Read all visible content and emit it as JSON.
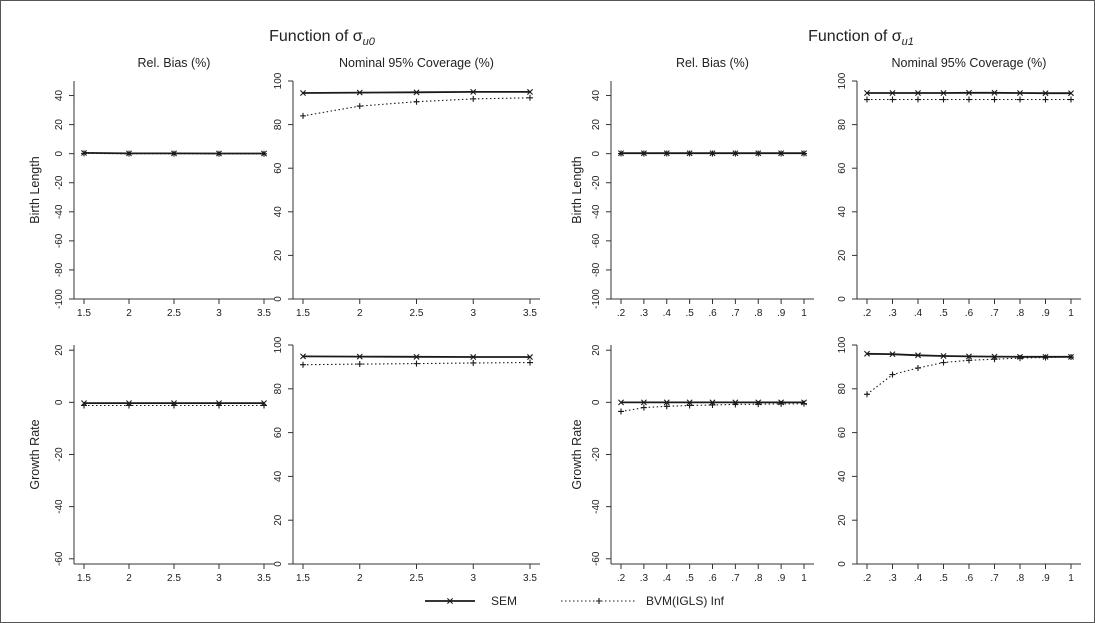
{
  "chart_data": {
    "type": "line",
    "groups": [
      {
        "prefix": "Function of ",
        "symbol": "σ",
        "sub": "u0"
      },
      {
        "prefix": "Function of ",
        "symbol": "σ",
        "sub": "u1"
      }
    ],
    "row_labels": [
      "Birth Length",
      "Growth Rate"
    ],
    "legend": [
      "SEM",
      "BVM(IGLS) Inf"
    ],
    "panels": [
      {
        "title": "Rel. Bias (%)",
        "row": 0,
        "col": 0,
        "x": [
          1.5,
          2,
          2.5,
          3,
          3.5
        ],
        "x_ticks": [
          "1.5",
          "2",
          "2.5",
          "3",
          "3.5"
        ],
        "ylim": [
          -100,
          50
        ],
        "y_ticks": [
          "-100",
          "-80",
          "-60",
          "-40",
          "-20",
          "0",
          "20",
          "40"
        ],
        "y_tick_values": [
          -100,
          -80,
          -60,
          -40,
          -20,
          0,
          20,
          40
        ],
        "series": [
          {
            "name": "SEM",
            "values": [
              0.5,
              0.2,
              0.2,
              0.1,
              0.1
            ]
          },
          {
            "name": "BVM(IGLS) Inf",
            "values": [
              0.2,
              0.0,
              0.0,
              -0.1,
              -0.1
            ]
          }
        ]
      },
      {
        "title": "Nominal 95% Coverage (%)",
        "row": 0,
        "col": 1,
        "x": [
          1.5,
          2,
          2.5,
          3,
          3.5
        ],
        "x_ticks": [
          "1.5",
          "2",
          "2.5",
          "3",
          "3.5"
        ],
        "ylim": [
          0,
          100
        ],
        "y_ticks": [
          "0",
          "20",
          "40",
          "60",
          "80",
          "100"
        ],
        "y_tick_values": [
          0,
          20,
          40,
          60,
          80,
          100
        ],
        "series": [
          {
            "name": "SEM",
            "values": [
              94.5,
              94.7,
              94.8,
              95.0,
              95.0
            ]
          },
          {
            "name": "BVM(IGLS) Inf",
            "values": [
              84,
              88.5,
              90.5,
              91.8,
              92.3
            ]
          }
        ]
      },
      {
        "title": "Rel. Bias (%)",
        "row": 0,
        "col": 2,
        "x": [
          0.2,
          0.3,
          0.4,
          0.5,
          0.6,
          0.7,
          0.8,
          0.9,
          1.0
        ],
        "x_ticks": [
          ".2",
          ".3",
          ".4",
          ".5",
          ".6",
          ".7",
          ".8",
          ".9",
          "1"
        ],
        "ylim": [
          -100,
          50
        ],
        "y_ticks": [
          "-100",
          "-80",
          "-60",
          "-40",
          "-20",
          "0",
          "20",
          "40"
        ],
        "y_tick_values": [
          -100,
          -80,
          -60,
          -40,
          -20,
          0,
          20,
          40
        ],
        "series": [
          {
            "name": "SEM",
            "values": [
              0.3,
              0.3,
              0.3,
              0.3,
              0.3,
              0.3,
              0.3,
              0.3,
              0.3
            ]
          },
          {
            "name": "BVM(IGLS) Inf",
            "values": [
              0.1,
              0.1,
              0.1,
              0.1,
              0.1,
              0.1,
              0.1,
              0.1,
              0.1
            ]
          }
        ]
      },
      {
        "title": "Nominal 95% Coverage (%)",
        "row": 0,
        "col": 3,
        "x": [
          0.2,
          0.3,
          0.4,
          0.5,
          0.6,
          0.7,
          0.8,
          0.9,
          1.0
        ],
        "x_ticks": [
          ".2",
          ".3",
          ".4",
          ".5",
          ".6",
          ".7",
          ".8",
          ".9",
          "1"
        ],
        "ylim": [
          0,
          100
        ],
        "y_ticks": [
          "0",
          "20",
          "40",
          "60",
          "80",
          "100"
        ],
        "y_tick_values": [
          0,
          20,
          40,
          60,
          80,
          100
        ],
        "series": [
          {
            "name": "SEM",
            "values": [
              94.5,
              94.5,
              94.5,
              94.5,
              94.6,
              94.6,
              94.5,
              94.4,
              94.4
            ]
          },
          {
            "name": "BVM(IGLS) Inf",
            "values": [
              91.5,
              91.5,
              91.5,
              91.5,
              91.5,
              91.5,
              91.5,
              91.5,
              91.5
            ]
          }
        ]
      },
      {
        "title": "",
        "row": 1,
        "col": 0,
        "x": [
          1.5,
          2,
          2.5,
          3,
          3.5
        ],
        "x_ticks": [
          "1.5",
          "2",
          "2.5",
          "3",
          "3.5"
        ],
        "ylim": [
          -62,
          22
        ],
        "y_ticks": [
          "-60",
          "-40",
          "-20",
          "0",
          "20"
        ],
        "y_tick_values": [
          -60,
          -40,
          -20,
          0,
          20
        ],
        "series": [
          {
            "name": "SEM",
            "values": [
              -0.3,
              -0.3,
              -0.3,
              -0.3,
              -0.3
            ]
          },
          {
            "name": "BVM(IGLS) Inf",
            "values": [
              -1.2,
              -1.2,
              -1.2,
              -1.2,
              -1.2
            ]
          }
        ]
      },
      {
        "title": "",
        "row": 1,
        "col": 1,
        "x": [
          1.5,
          2,
          2.5,
          3,
          3.5
        ],
        "x_ticks": [
          "1.5",
          "2",
          "2.5",
          "3",
          "3.5"
        ],
        "ylim": [
          0,
          100
        ],
        "y_ticks": [
          "0",
          "20",
          "40",
          "60",
          "80",
          "100"
        ],
        "y_tick_values": [
          0,
          20,
          40,
          60,
          80,
          100
        ],
        "series": [
          {
            "name": "SEM",
            "values": [
              94.8,
              94.7,
              94.6,
              94.5,
              94.5
            ]
          },
          {
            "name": "BVM(IGLS) Inf",
            "values": [
              91.0,
              91.3,
              91.5,
              91.8,
              92.0
            ]
          }
        ]
      },
      {
        "title": "",
        "row": 1,
        "col": 2,
        "x": [
          0.2,
          0.3,
          0.4,
          0.5,
          0.6,
          0.7,
          0.8,
          0.9,
          1.0
        ],
        "x_ticks": [
          ".2",
          ".3",
          ".4",
          ".5",
          ".6",
          ".7",
          ".8",
          ".9",
          "1"
        ],
        "ylim": [
          -62,
          22
        ],
        "y_ticks": [
          "-60",
          "-40",
          "-20",
          "0",
          "20"
        ],
        "y_tick_values": [
          -60,
          -40,
          -20,
          0,
          20
        ],
        "series": [
          {
            "name": "SEM",
            "values": [
              0.0,
              0.0,
              0.0,
              0.0,
              0.0,
              0.0,
              0.0,
              0.0,
              0.0
            ]
          },
          {
            "name": "BVM(IGLS) Inf",
            "values": [
              -3.5,
              -2.0,
              -1.5,
              -1.2,
              -1.0,
              -0.8,
              -0.7,
              -0.6,
              -0.5
            ]
          }
        ]
      },
      {
        "title": "",
        "row": 1,
        "col": 3,
        "x": [
          0.2,
          0.3,
          0.4,
          0.5,
          0.6,
          0.7,
          0.8,
          0.9,
          1.0
        ],
        "x_ticks": [
          ".2",
          ".3",
          ".4",
          ".5",
          ".6",
          ".7",
          ".8",
          ".9",
          "1"
        ],
        "ylim": [
          0,
          100
        ],
        "y_ticks": [
          "0",
          "20",
          "40",
          "60",
          "80",
          "100"
        ],
        "y_tick_values": [
          0,
          20,
          40,
          60,
          80,
          100
        ],
        "series": [
          {
            "name": "SEM",
            "values": [
              96.0,
              95.8,
              95.3,
              95.0,
              94.8,
              94.7,
              94.6,
              94.6,
              94.6
            ]
          },
          {
            "name": "BVM(IGLS) Inf",
            "values": [
              77.5,
              86.5,
              89.5,
              92.0,
              93.0,
              93.5,
              94.0,
              94.3,
              94.5
            ]
          }
        ]
      }
    ]
  }
}
